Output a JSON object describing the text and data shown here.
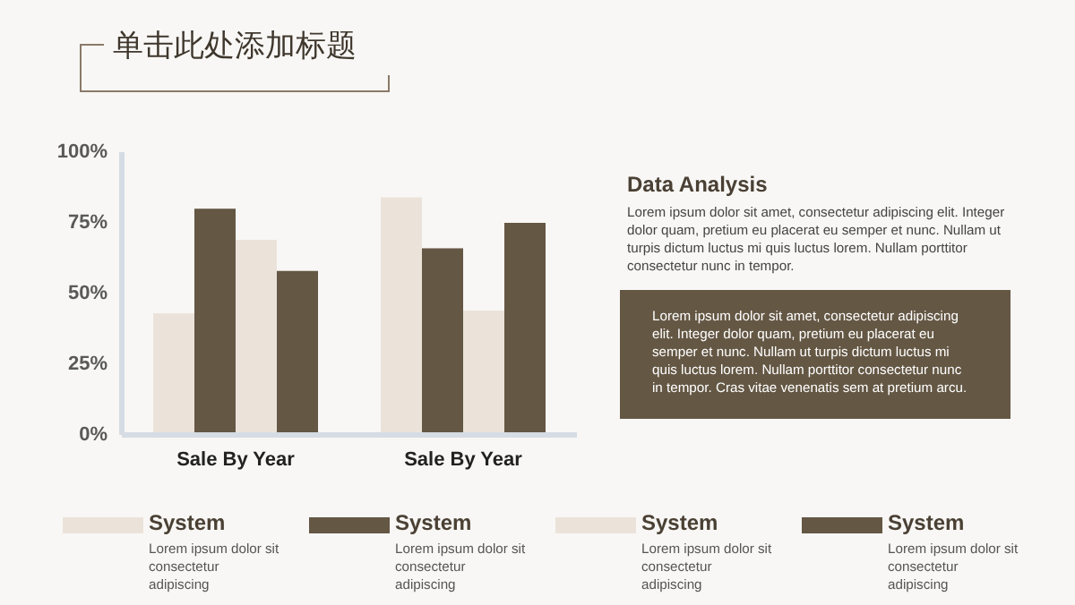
{
  "chart_data": {
    "type": "bar",
    "title": "单击此处添加标题",
    "categories": [
      "Sale By Year",
      "Sale By Year"
    ],
    "series": [
      {
        "name": "System",
        "color": "#ebe3da",
        "values": [
          43,
          84
        ]
      },
      {
        "name": "System",
        "color": "#645744",
        "values": [
          80,
          66
        ]
      },
      {
        "name": "System",
        "color": "#ebe3da",
        "values": [
          69,
          44
        ]
      },
      {
        "name": "System",
        "color": "#645744",
        "values": [
          58,
          75
        ]
      }
    ],
    "ylim": [
      0,
      100
    ],
    "yticks": [
      {
        "value": 0,
        "label": "0%"
      },
      {
        "value": 25,
        "label": "25%"
      },
      {
        "value": 50,
        "label": "50%"
      },
      {
        "value": 75,
        "label": "75%"
      },
      {
        "value": 100,
        "label": "100%"
      }
    ],
    "legend": "bottom",
    "annotations": [
      "Data Analysis",
      "Lorem ipsum dolor sit amet, consectetur adipiscing elit. Integer dolor quam, pretium eu placerat eu semper et nunc. Nullam ut turpis dictum luctus mi quis luctus lorem. Nullam porttitor consectetur nunc in tempor.",
      "Lorem ipsum dolor sit amet, consectetur adipiscing elit. Integer dolor quam, pretium eu placerat eu semper et nunc. Nullam ut turpis dictum luctus mi quis luctus lorem. Nullam porttitor consectetur nunc in tempor. Cras vitae venenatis sem at pretium arcu.",
      "Lorem ipsum dolor sit consectetur adipiscing",
      "Lorem ipsum dolor sit consectetur adipiscing",
      "Lorem ipsum dolor sit consectetur adipiscing",
      "Lorem ipsum dolor sit consectetur adipiscing"
    ]
  }
}
